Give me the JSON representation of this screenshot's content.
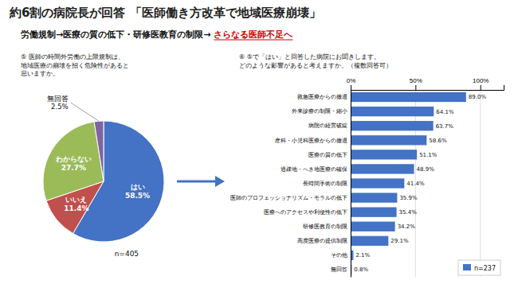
{
  "title": "約6割の病院長が回答 「医師働き方改革で地域医療崩壊」",
  "subtitle": [
    "労働規制→医療の質の低下・研修医教育の制限→",
    "さらなる医師不足へ"
  ],
  "chart_data": [
    {
      "type": "pie",
      "subtitle": "⑤ 医師の時間外労働の上限規制は、\n地域医療の崩壊を招く危険性があると\n思いますか。",
      "categories": [
        "はい",
        "いいえ",
        "わからない",
        "無回答"
      ],
      "values": [
        58.5,
        11.4,
        27.7,
        2.5
      ],
      "value_labels": [
        "58.5%",
        "11.4%",
        "27.7%",
        "2.5%"
      ],
      "colors": [
        "#4472C4",
        "#C0504D",
        "#9BBB59",
        "#8064A2"
      ],
      "data_labels": true,
      "annotations": [
        "n=405"
      ]
    },
    {
      "type": "bar",
      "orientation": "horizontal",
      "subtitle": "⑥ ⑤で「はい」と回答した病院にお聞きします。\nどのような影響があると考えますか。（複数回答可）",
      "categories": [
        "救急医療からの撤退",
        "外来診療の制限・縮小",
        "病院の経営破綻",
        "産科・小児科医療からの撤退",
        "医療の質の低下",
        "過疎地・へき地医療の確保",
        "長時間手術の制限",
        "医師のプロフェッショナリズム・モラルの低下",
        "医療へのアクセスや利便性の低下",
        "研修医教育の制限",
        "高度医療の提供制限",
        "その他",
        "無回答"
      ],
      "series": [
        {
          "name": "n=237",
          "color": "#4472C4",
          "values": [
            89.0,
            64.1,
            63.7,
            58.6,
            51.1,
            48.9,
            41.4,
            35.9,
            35.4,
            34.2,
            29.1,
            2.1,
            0.8
          ],
          "value_labels": [
            "89.0%",
            "64.1%",
            "63.7%",
            "58.6%",
            "51.1%",
            "48.9%",
            "41.4%",
            "35.9%",
            "35.4%",
            "34.2%",
            "29.1%",
            "2.1%",
            "0.8%"
          ]
        }
      ],
      "xlim": [
        0,
        118
      ],
      "xticks": [
        {
          "value": 0,
          "label": "0%"
        },
        {
          "value": 50,
          "label": "50%"
        },
        {
          "value": 100,
          "label": "100%"
        }
      ],
      "grid": true,
      "data_labels": true,
      "legend": "lower right"
    }
  ]
}
